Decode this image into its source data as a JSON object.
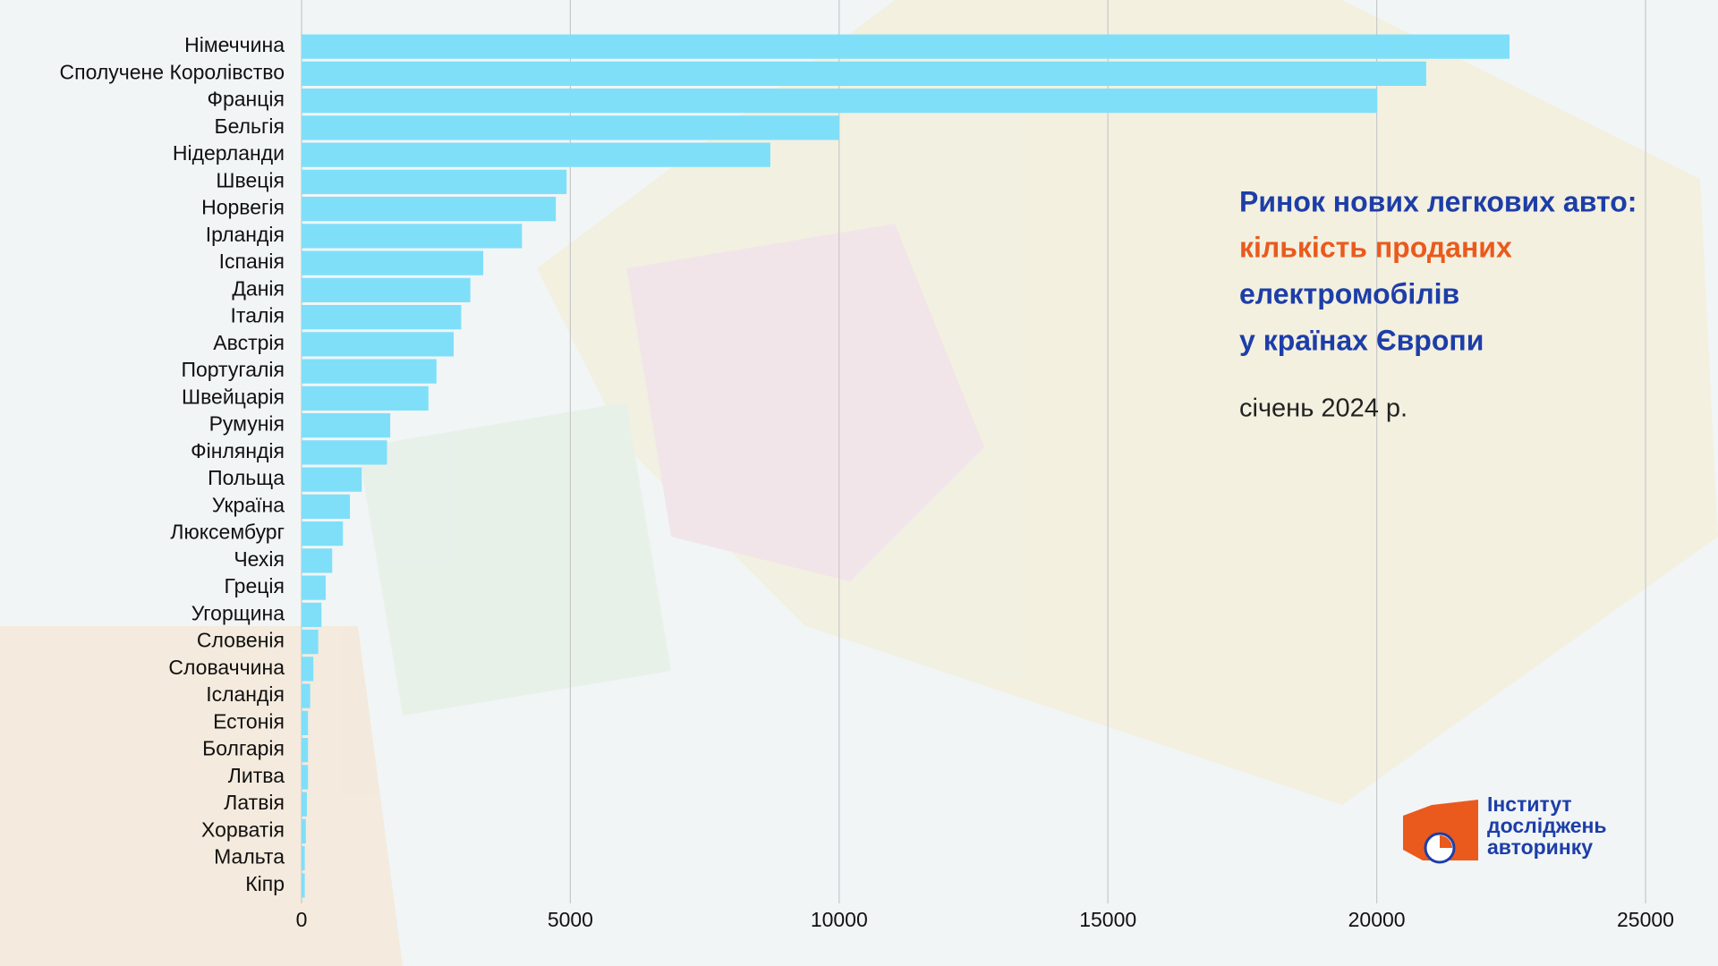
{
  "chart_data": {
    "type": "bar",
    "orientation": "horizontal",
    "title_lines": [
      "Ринок нових легкових авто:",
      "кількість проданих",
      "електромобілів",
      "у країнах Європи"
    ],
    "subtitle": "січень 2024 р.",
    "categories": [
      "Німеччина",
      "Сполучене Королівство",
      "Франція",
      "Бельгія",
      "Нідерланди",
      "Швеція",
      "Норвегія",
      "Ірландія",
      "Іспанія",
      "Данія",
      "Італія",
      "Австрія",
      "Португалія",
      "Швейцарія",
      "Румунія",
      "Фінляндія",
      "Польща",
      "Україна",
      "Люксембург",
      "Чехія",
      "Греція",
      "Угорщина",
      "Словенія",
      "Словаччина",
      "Ісландія",
      "Естонія",
      "Болгарія",
      "Литва",
      "Латвія",
      "Хорватія",
      "Мальта",
      "Кіпр"
    ],
    "values": [
      22470,
      20920,
      20010,
      10000,
      8720,
      4930,
      4730,
      4100,
      3380,
      3140,
      2970,
      2830,
      2510,
      2360,
      1650,
      1590,
      1120,
      900,
      770,
      570,
      450,
      370,
      310,
      220,
      160,
      120,
      120,
      120,
      100,
      80,
      60,
      60
    ],
    "color": "#7fdff9",
    "xlim": [
      0,
      25000
    ],
    "xticks": [
      0,
      5000,
      10000,
      15000,
      20000,
      25000
    ],
    "grid": true
  },
  "logo": {
    "lines": [
      "Інститут",
      "досліджень",
      "авторинку"
    ]
  }
}
